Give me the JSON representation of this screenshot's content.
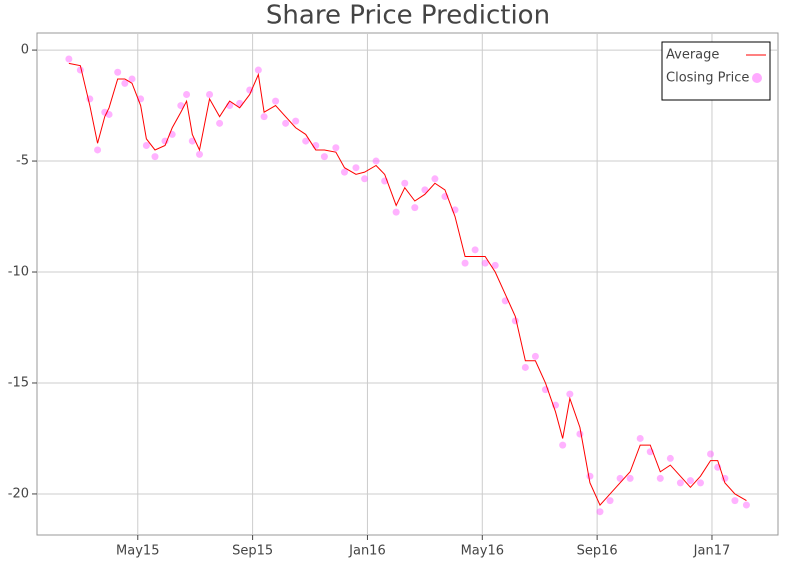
{
  "chart_data": {
    "type": "line",
    "title": "Share Price Prediction",
    "x": [
      1.6,
      2.0,
      2.33,
      2.6,
      2.85,
      3.0,
      3.3,
      3.55,
      3.8,
      4.1,
      4.3,
      4.6,
      4.95,
      5.2,
      5.5,
      5.7,
      5.9,
      6.15,
      6.5,
      6.85,
      7.2,
      7.55,
      7.9,
      8.2,
      8.4,
      8.8,
      9.15,
      9.5,
      9.85,
      10.2,
      10.5,
      10.9,
      11.2,
      11.6,
      11.9,
      12.3,
      12.6,
      13.0,
      13.3,
      13.65,
      14.0,
      14.35,
      14.7,
      15.05,
      15.4,
      15.75,
      16.1,
      16.45,
      16.8,
      17.15,
      17.5,
      17.85,
      18.2,
      18.55,
      18.8,
      19.05,
      19.4,
      19.75,
      20.1,
      20.45,
      20.8,
      21.15,
      21.5,
      21.85,
      22.2,
      22.55,
      22.9,
      23.25,
      23.6,
      23.95,
      24.2,
      24.45,
      24.8,
      25.2
    ],
    "series": [
      {
        "name": "Average",
        "mark": "line",
        "color": "#ff0000",
        "values": [
          -0.6,
          -0.7,
          -2.5,
          -4.2,
          -3.0,
          -2.6,
          -1.3,
          -1.3,
          -1.5,
          -2.5,
          -4.0,
          -4.5,
          -4.3,
          -3.5,
          -2.8,
          -2.3,
          -3.8,
          -4.5,
          -2.2,
          -3.0,
          -2.3,
          -2.6,
          -2.0,
          -1.1,
          -2.8,
          -2.5,
          -3.0,
          -3.5,
          -3.8,
          -4.5,
          -4.5,
          -4.6,
          -5.3,
          -5.6,
          -5.5,
          -5.2,
          -5.6,
          -7.0,
          -6.2,
          -6.8,
          -6.5,
          -6.0,
          -6.3,
          -7.5,
          -9.3,
          -9.3,
          -9.3,
          -10.0,
          -11.0,
          -12.0,
          -14.0,
          -14.0,
          -15.0,
          -16.3,
          -17.5,
          -15.7,
          -17.0,
          -19.5,
          -20.5,
          -20.0,
          -19.5,
          -19.0,
          -17.8,
          -17.8,
          -19.0,
          -18.7,
          -19.2,
          -19.7,
          -19.2,
          -18.5,
          -18.5,
          -19.5,
          -20.0,
          -20.3
        ]
      },
      {
        "name": "Closing Price",
        "mark": "circle",
        "color": "#ff55ff",
        "values": [
          -0.4,
          -0.9,
          -2.2,
          -4.5,
          -2.8,
          -2.9,
          -1.0,
          -1.5,
          -1.3,
          -2.2,
          -4.3,
          -4.8,
          -4.1,
          -3.8,
          -2.5,
          -2.0,
          -4.1,
          -4.7,
          -2.0,
          -3.3,
          -2.5,
          -2.4,
          -1.8,
          -0.9,
          -3.0,
          -2.3,
          -3.3,
          -3.2,
          -4.1,
          -4.3,
          -4.8,
          -4.4,
          -5.5,
          -5.3,
          -5.8,
          -5.0,
          -5.9,
          -7.3,
          -6.0,
          -7.1,
          -6.3,
          -5.8,
          -6.6,
          -7.2,
          -9.6,
          -9.0,
          -9.6,
          -9.7,
          -11.3,
          -12.2,
          -14.3,
          -13.8,
          -15.3,
          -16.0,
          -17.8,
          -15.5,
          -17.3,
          -19.2,
          -20.8,
          -20.3,
          -19.3,
          -19.3,
          -17.5,
          -18.1,
          -19.3,
          -18.4,
          -19.5,
          -19.4,
          -19.5,
          -18.2,
          -18.8,
          -19.3,
          -20.3,
          -20.5
        ]
      }
    ],
    "xlim": [
      0.49,
      26.3
    ],
    "xticks": [
      {
        "value": 4,
        "label": "May15"
      },
      {
        "value": 8,
        "label": "Sep15"
      },
      {
        "value": 12,
        "label": "Jan16"
      },
      {
        "value": 16,
        "label": "May16"
      },
      {
        "value": 20,
        "label": "Sep16"
      },
      {
        "value": 24,
        "label": "Jan17"
      }
    ],
    "ylim": [
      -21.85,
      0.77
    ],
    "yticks": [
      0,
      -5,
      -10,
      -15,
      -20
    ],
    "grid": true,
    "legend": "top-right"
  }
}
